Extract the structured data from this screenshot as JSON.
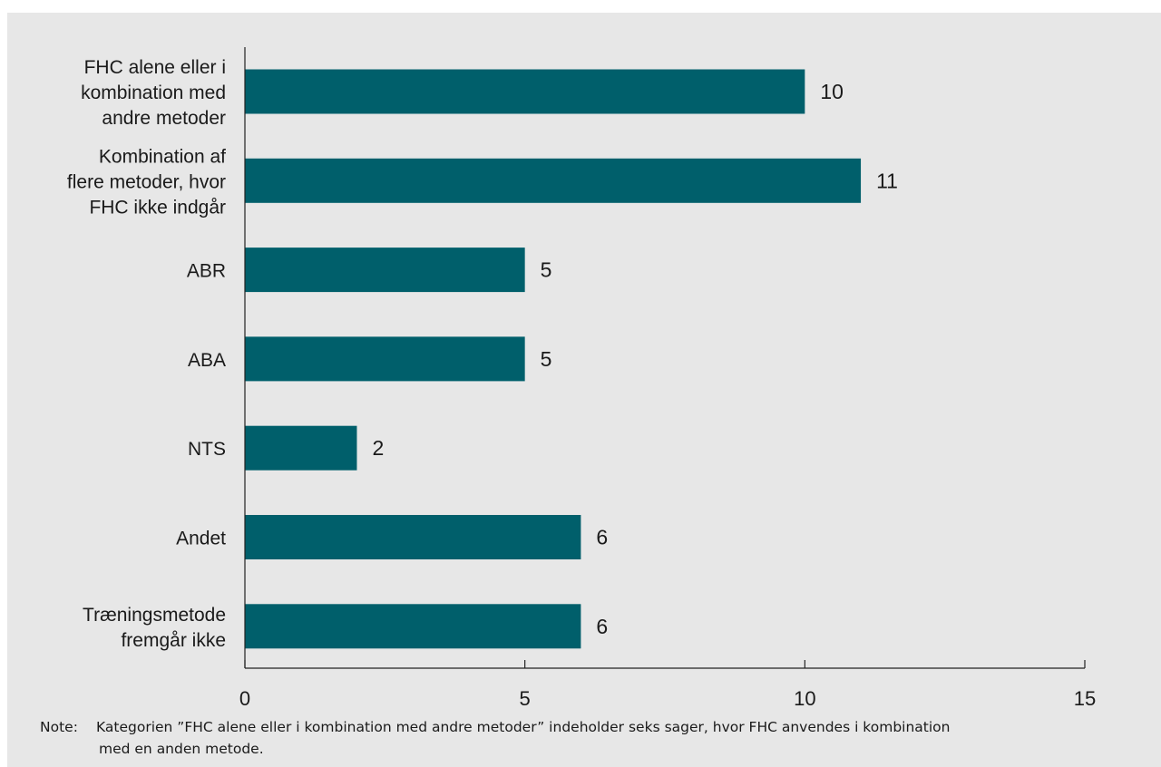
{
  "chart_data": {
    "type": "bar",
    "orientation": "horizontal",
    "categories": [
      "FHC alene eller i kombination med andre metoder",
      "Kombination af flere metoder, hvor FHC ikke indgår",
      "ABR",
      "ABA",
      "NTS",
      "Andet",
      "Træningsmetode fremgår ikke"
    ],
    "category_lines": [
      [
        "FHC alene eller i",
        "kombination med",
        "andre metoder"
      ],
      [
        "Kombination af",
        "flere metoder, hvor",
        "FHC ikke indgår"
      ],
      [
        "ABR"
      ],
      [
        "ABA"
      ],
      [
        "NTS"
      ],
      [
        "Andet"
      ],
      [
        "Træningsmetode",
        "fremgår ikke"
      ]
    ],
    "values": [
      10,
      11,
      5,
      5,
      2,
      6,
      6
    ],
    "value_labels": [
      "10",
      "11",
      "5",
      "5",
      "2",
      "6",
      "6"
    ],
    "xlim": [
      0,
      15
    ],
    "xticks": [
      0,
      5,
      10,
      15
    ],
    "xtick_labels": [
      "0",
      "5",
      "10",
      "15"
    ],
    "title": "",
    "xlabel": "",
    "ylabel": "",
    "grid": false,
    "legend": "none",
    "bar_color": "#005f6b",
    "background_color": "#e7e7e7"
  },
  "note": {
    "label": "Note:",
    "text_line1": "Kategorien ”FHC alene eller i kombination med andre metoder” indeholder seks sager, hvor FHC anvendes i kombination",
    "text_line2": "med en anden metode."
  }
}
